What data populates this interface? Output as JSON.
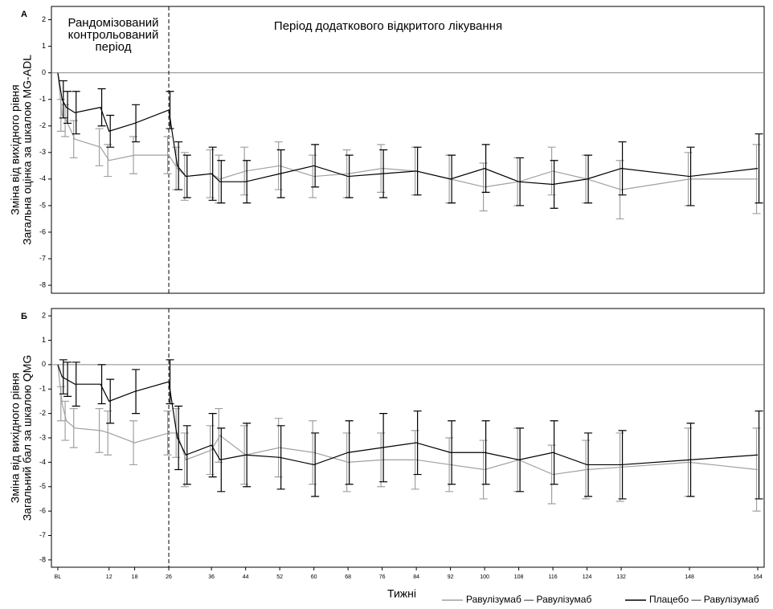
{
  "chart_data": [
    {
      "type": "line",
      "panel": "А",
      "y_label": [
        "Зміна від вихідного рівня",
        "Загальна оцінка за шкалою MG-ADL"
      ],
      "annotations": [
        "Рандомізований",
        "контрольований",
        "період",
        "Період додаткового відкритого лікування"
      ],
      "x": [
        0,
        1,
        2,
        4,
        10,
        12,
        18,
        26,
        28,
        30,
        36,
        38,
        44,
        52,
        60,
        68,
        76,
        84,
        92,
        100,
        108,
        116,
        124,
        132,
        148,
        164
      ],
      "xlim": [
        -1.5,
        165.5
      ],
      "ylim": [
        -8.3,
        2.5
      ],
      "yticks": [
        -8,
        -7,
        -6,
        -5,
        -4,
        -3,
        -2,
        -1,
        0,
        1,
        2
      ],
      "vline": 26,
      "hline": 0,
      "series": [
        {
          "color": "#a0a0a0",
          "values": [
            0,
            -1.6,
            -1.8,
            -2.5,
            -2.8,
            -3.3,
            -3.1,
            -3.1,
            -3.6,
            -3.9,
            -3.8,
            -4.0,
            -3.7,
            -3.5,
            -3.9,
            -3.8,
            -3.6,
            -3.7,
            -4.0,
            -4.3,
            -4.1,
            -3.7,
            -4.0,
            -4.4,
            -4.0,
            -4.0
          ],
          "errors": [
            0,
            0.6,
            0.6,
            0.7,
            0.7,
            0.6,
            0.7,
            0.7,
            0.8,
            0.9,
            0.9,
            0.9,
            0.9,
            0.9,
            0.8,
            0.9,
            0.9,
            0.9,
            0.9,
            0.9,
            0.9,
            0.9,
            0.9,
            1.1,
            1.0,
            1.3
          ]
        },
        {
          "color": "#000000",
          "values": [
            0,
            -1.0,
            -1.3,
            -1.5,
            -1.3,
            -2.2,
            -1.9,
            -1.4,
            -3.5,
            -3.9,
            -3.8,
            -4.1,
            -4.1,
            -3.8,
            -3.5,
            -3.9,
            -3.8,
            -3.7,
            -4.0,
            -3.6,
            -4.1,
            -4.2,
            -4.0,
            -3.6,
            -3.9,
            -3.6
          ],
          "errors": [
            0,
            0.7,
            0.6,
            0.8,
            0.7,
            0.6,
            0.7,
            0.7,
            0.9,
            0.8,
            1.0,
            0.8,
            0.8,
            0.9,
            0.8,
            0.8,
            0.9,
            0.9,
            0.9,
            0.9,
            0.9,
            0.9,
            0.9,
            1.0,
            1.1,
            1.3
          ]
        }
      ]
    },
    {
      "type": "line",
      "panel": "Б",
      "y_label": [
        "Зміна від вихідного рівня",
        "Загальний бал за шкалою QMG"
      ],
      "x_label": "Тижні",
      "x": [
        0,
        1,
        2,
        4,
        10,
        12,
        18,
        26,
        28,
        30,
        36,
        38,
        44,
        52,
        60,
        68,
        76,
        84,
        92,
        100,
        108,
        116,
        124,
        132,
        148,
        164
      ],
      "xlim": [
        -1.5,
        165.5
      ],
      "xticks": [
        {
          "value": 0,
          "label": "BL"
        },
        12,
        18,
        26,
        36,
        44,
        52,
        60,
        68,
        76,
        84,
        92,
        100,
        108,
        116,
        124,
        132,
        148,
        164
      ],
      "ylim": [
        -8.3,
        2.3
      ],
      "yticks": [
        -8,
        -7,
        -6,
        -5,
        -4,
        -3,
        -2,
        -1,
        0,
        1,
        2
      ],
      "vline": 26,
      "hline": 0,
      "series": [
        {
          "name": "Равулізумаб — Равулізумаб",
          "color": "#a0a0a0",
          "values": [
            0,
            -1.6,
            -2.3,
            -2.6,
            -2.7,
            -2.8,
            -3.2,
            -2.8,
            -2.8,
            -3.9,
            -3.5,
            -2.9,
            -3.7,
            -3.4,
            -3.6,
            -4.0,
            -3.9,
            -3.9,
            -4.1,
            -4.3,
            -3.9,
            -4.5,
            -4.3,
            -4.2,
            -4.0,
            -4.3
          ],
          "errors": [
            0,
            0.7,
            0.8,
            0.8,
            0.9,
            0.9,
            0.9,
            0.9,
            1.0,
            1.1,
            1.0,
            1.1,
            1.2,
            1.2,
            1.3,
            1.2,
            1.1,
            1.2,
            1.1,
            1.2,
            1.3,
            1.2,
            1.2,
            1.4,
            1.4,
            1.7
          ]
        },
        {
          "name": "Плацебо — Равулізумаб",
          "color": "#000000",
          "values": [
            0,
            -0.5,
            -0.6,
            -0.8,
            -0.8,
            -1.5,
            -1.1,
            -0.7,
            -3.0,
            -3.7,
            -3.3,
            -3.9,
            -3.7,
            -3.8,
            -4.1,
            -3.6,
            -3.4,
            -3.2,
            -3.6,
            -3.6,
            -3.9,
            -3.6,
            -4.1,
            -4.1,
            -3.9,
            -3.7
          ],
          "errors": [
            0,
            0.7,
            0.7,
            0.9,
            0.8,
            0.9,
            0.9,
            0.9,
            1.3,
            1.2,
            1.3,
            1.3,
            1.3,
            1.3,
            1.3,
            1.3,
            1.4,
            1.3,
            1.3,
            1.3,
            1.3,
            1.3,
            1.3,
            1.4,
            1.5,
            1.8
          ]
        }
      ]
    }
  ]
}
